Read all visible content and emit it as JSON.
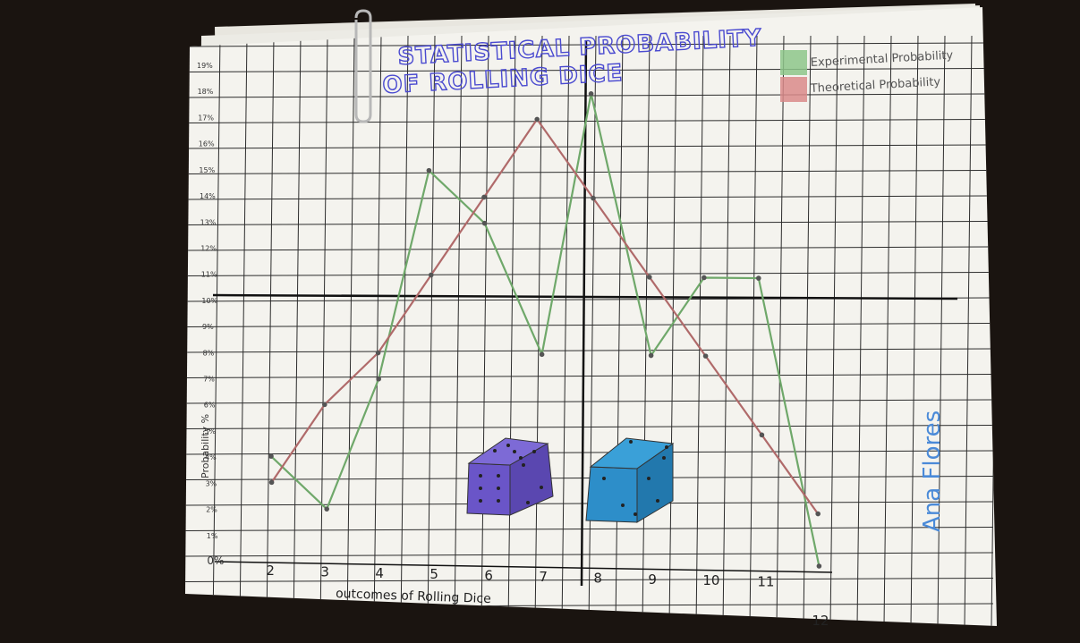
{
  "chart_data": {
    "type": "line",
    "title_line1": "STATISTICAL PROBABILITY",
    "title_line2": "OF ROLLING DICE",
    "xlabel": "outcomes of Rolling Dice",
    "ylabel": "Probability %",
    "author": "Ana Flores",
    "x": [
      2,
      3,
      4,
      5,
      6,
      7,
      8,
      9,
      10,
      11,
      12
    ],
    "x_tick_labels": [
      "2",
      "3",
      "4",
      "5",
      "6",
      "7",
      "8",
      "9",
      "10",
      "11",
      "12"
    ],
    "y_tick_labels": [
      "0%",
      "1%",
      "2%",
      "3%",
      "4%",
      "5%",
      "6%",
      "7%",
      "8%",
      "9%",
      "10%",
      "11%",
      "12%",
      "13%",
      "14%",
      "15%",
      "16%",
      "17%",
      "18%",
      "19%"
    ],
    "ylim": [
      0,
      19
    ],
    "grid": true,
    "legend_position": "top-right",
    "series": [
      {
        "name": "Experimental Probability",
        "color": "#6fa86a",
        "values": [
          4,
          2,
          7,
          15,
          13,
          8,
          18,
          8,
          11,
          11,
          0
        ]
      },
      {
        "name": "Theoretical Probability",
        "color": "#b06a6a",
        "values": [
          3,
          6,
          8,
          11,
          14,
          17,
          14,
          11,
          8,
          5,
          2
        ]
      }
    ]
  },
  "colors": {
    "paper": "#f4f3ee",
    "grid": "#2c2c2c",
    "title": "#4a4ad0",
    "die_purple": "#6a55c8",
    "die_blue": "#2d8ec9",
    "author": "#4a8ad8"
  }
}
